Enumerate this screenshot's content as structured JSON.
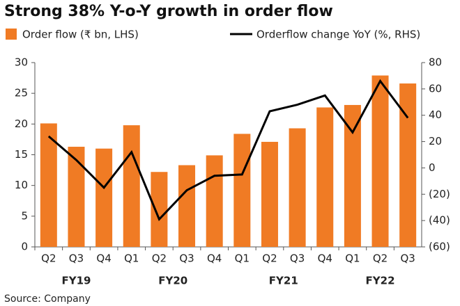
{
  "chart_data": {
    "type": "bar-line",
    "title": "Strong 38% Y-o-Y growth in order flow",
    "source": "Source: Company",
    "categories": [
      "Q2",
      "Q3",
      "Q4",
      "Q1",
      "Q2",
      "Q3",
      "Q4",
      "Q1",
      "Q2",
      "Q3",
      "Q4",
      "Q1",
      "Q2",
      "Q3"
    ],
    "x_groups": [
      "FY19",
      "FY19",
      "FY19",
      "FY20",
      "FY20",
      "FY20",
      "FY20",
      "FY21",
      "FY21",
      "FY21",
      "FY21",
      "FY22",
      "FY22",
      "FY22"
    ],
    "series": [
      {
        "name": "Order flow (₹ bn, LHS)",
        "color": "#f07b24",
        "kind": "bar",
        "values": [
          20.1,
          16.3,
          16.0,
          19.8,
          12.2,
          13.3,
          14.9,
          18.4,
          17.1,
          19.3,
          22.7,
          23.1,
          27.9,
          26.6
        ]
      },
      {
        "name": "Orderflow change YoY (%, RHS)",
        "color": "#000000",
        "kind": "line",
        "axis": "y2",
        "values": [
          24,
          6,
          -15,
          12,
          -39,
          -17,
          -6,
          -5,
          43,
          48,
          55,
          27,
          66,
          38
        ]
      }
    ],
    "ylim": [
      0,
      30
    ],
    "yticks": [
      0,
      5,
      10,
      15,
      20,
      25,
      30
    ],
    "y2lim": [
      -60,
      80
    ],
    "y2ticks": [
      {
        "value": -60,
        "label": "(60)"
      },
      {
        "value": -40,
        "label": "(40)"
      },
      {
        "value": -20,
        "label": "(20)"
      },
      0,
      20,
      40,
      60,
      80
    ]
  }
}
